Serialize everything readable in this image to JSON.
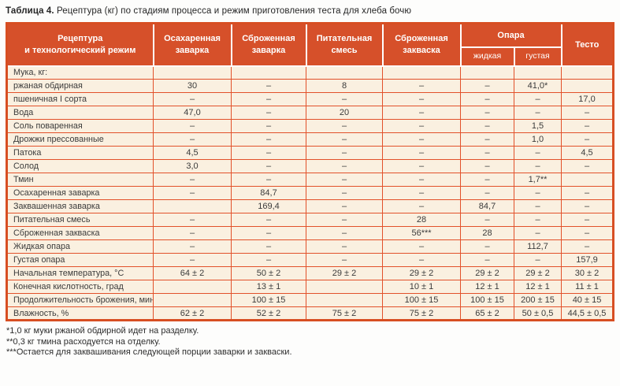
{
  "page": {
    "title_label": "Таблица 4.",
    "title_text": " Рецептура (кг) по стадиям процесса и режим приготовления теста для хлеба бочю"
  },
  "colors": {
    "header_bg": "#d6502a",
    "header_text": "#ffffff",
    "border": "#e2512a",
    "border_strong": "#d74e22",
    "cell_bg": "#faf0e0"
  },
  "table": {
    "header": {
      "recipe": "Рецептура\nи технологический режим",
      "col1": "Осахаренная\nзаварка",
      "col2": "Сброженная\nзаварка",
      "col3": "Питательная\nсмесь",
      "col4": "Сброженная\nзакваска",
      "opara": "Опара",
      "opara_liquid": "жидкая",
      "opara_thick": "густая",
      "dough": "Тесто"
    },
    "rows": [
      {
        "label": "Мука, кг:",
        "cells": [
          "",
          "",
          "",
          "",
          "",
          "",
          ""
        ]
      },
      {
        "label": "ржаная обдирная",
        "cells": [
          "30",
          "–",
          "8",
          "–",
          "–",
          "41,0*",
          ""
        ]
      },
      {
        "label": "пшеничная I сорта",
        "cells": [
          "–",
          "–",
          "–",
          "–",
          "–",
          "–",
          "17,0"
        ]
      },
      {
        "label": "Вода",
        "cells": [
          "47,0",
          "–",
          "20",
          "–",
          "–",
          "–",
          "–"
        ]
      },
      {
        "label": "Соль поваренная",
        "cells": [
          "–",
          "–",
          "–",
          "–",
          "–",
          "1,5",
          "–"
        ]
      },
      {
        "label": "Дрожжи прессованные",
        "cells": [
          "–",
          "–",
          "–",
          "–",
          "–",
          "1,0",
          "–"
        ]
      },
      {
        "label": "Патока",
        "cells": [
          "4,5",
          "–",
          "–",
          "–",
          "–",
          "–",
          "4,5"
        ]
      },
      {
        "label": "Солод",
        "cells": [
          "3,0",
          "–",
          "–",
          "–",
          "–",
          "–",
          "–"
        ]
      },
      {
        "label": "Тмин",
        "cells": [
          "–",
          "–",
          "–",
          "–",
          "–",
          "1,7**",
          ""
        ]
      },
      {
        "label": "Осахаренная заварка",
        "cells": [
          "–",
          "84,7",
          "–",
          "–",
          "–",
          "–",
          "–"
        ]
      },
      {
        "label": "Заквашенная заварка",
        "cells": [
          "",
          "169,4",
          "–",
          "–",
          "84,7",
          "–",
          "–"
        ]
      },
      {
        "label": "Питательная смесь",
        "cells": [
          "–",
          "–",
          "–",
          "28",
          "–",
          "–",
          "–"
        ]
      },
      {
        "label": "Сброженная закваска",
        "cells": [
          "–",
          "–",
          "–",
          "56***",
          "28",
          "–",
          "–"
        ]
      },
      {
        "label": "Жидкая опара",
        "cells": [
          "–",
          "–",
          "–",
          "–",
          "–",
          "112,7",
          "–"
        ]
      },
      {
        "label": "Густая опара",
        "cells": [
          "–",
          "–",
          "–",
          "–",
          "–",
          "–",
          "157,9"
        ]
      },
      {
        "label": "Начальная температура, °С",
        "cells": [
          "64 ± 2",
          "50 ± 2",
          "29 ± 2",
          "29 ± 2",
          "29 ± 2",
          "29 ± 2",
          "30 ± 2"
        ]
      },
      {
        "label": "Конечная кислотность, град",
        "cells": [
          "",
          "13 ± 1",
          "",
          "10 ± 1",
          "12 ± 1",
          "12 ± 1",
          "11 ± 1"
        ]
      },
      {
        "label": "Продолжительность брожения, мин",
        "cells": [
          "",
          "100 ± 15",
          "",
          "100 ± 15",
          "100 ± 15",
          "200 ± 15",
          "40 ± 15"
        ]
      },
      {
        "label": "Влажность, %",
        "cells": [
          "62 ± 2",
          "52 ± 2",
          "75 ± 2",
          "75 ± 2",
          "65 ± 2",
          "50 ± 0,5",
          "44,5 ± 0,5"
        ]
      }
    ]
  },
  "footnotes": [
    "*1,0 кг муки ржаной обдирной идет на разделку.",
    "**0,3 кг тмина расходуется на отделку.",
    "***Остается для заквашивания следующей порции заварки и закваски."
  ]
}
